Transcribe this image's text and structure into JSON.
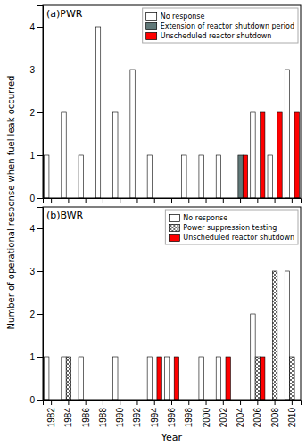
{
  "chart_data": [
    {
      "type": "bar",
      "title": "(a)PWR",
      "ylabel": "Number of operational response when fuel leak occurred",
      "categories": [
        1982,
        1984,
        1986,
        1988,
        1990,
        1992,
        1994,
        1996,
        1998,
        2000,
        2002,
        2004,
        2006,
        2008,
        2010
      ],
      "series": [
        {
          "name": "No response",
          "color": "#ffffff",
          "values": [
            1,
            2,
            1,
            4,
            2,
            3,
            1,
            0,
            1,
            1,
            1,
            0,
            2,
            1,
            3
          ]
        },
        {
          "name": "Extension of reactor shutdown period",
          "color": "#607878",
          "values": [
            0,
            0,
            0,
            0,
            0,
            0,
            0,
            0,
            0,
            0,
            0,
            1,
            0,
            0,
            0
          ]
        },
        {
          "name": "Unscheduled reactor shutdown",
          "color": "#ff0000",
          "values": [
            0,
            0,
            0,
            0,
            0,
            0,
            0,
            0,
            0,
            0,
            0,
            1,
            2,
            2,
            2
          ]
        }
      ],
      "ylim": [
        0,
        4.5
      ],
      "yticks": [
        0,
        1,
        2,
        3,
        4
      ],
      "legend": "upper right",
      "grid": false,
      "tick_labels": "y"
    },
    {
      "type": "bar",
      "title": "(b)BWR",
      "xlabel": "Year",
      "categories": [
        1982,
        1984,
        1986,
        1988,
        1990,
        1992,
        1994,
        1996,
        1998,
        2000,
        2002,
        2004,
        2006,
        2008,
        2010
      ],
      "series": [
        {
          "name": "No response",
          "color": "#ffffff",
          "values": [
            1,
            1,
            1,
            0,
            1,
            0,
            1,
            1,
            0,
            1,
            1,
            0,
            2,
            0,
            3
          ]
        },
        {
          "name": "Power suppression testing",
          "color": "#ffffff",
          "marker": "x",
          "values": [
            0,
            1,
            0,
            0,
            0,
            0,
            0,
            0,
            0,
            0,
            0,
            0,
            1,
            3,
            1
          ]
        },
        {
          "name": "Unscheduled reactor shutdown",
          "color": "#ff0000",
          "values": [
            0,
            0,
            0,
            0,
            0,
            0,
            1,
            1,
            0,
            0,
            1,
            0,
            1,
            0,
            0
          ]
        }
      ],
      "ylim": [
        0,
        4.5
      ],
      "yticks": [
        0,
        1,
        2,
        3,
        4
      ],
      "legend": "upper right",
      "grid": false
    }
  ]
}
